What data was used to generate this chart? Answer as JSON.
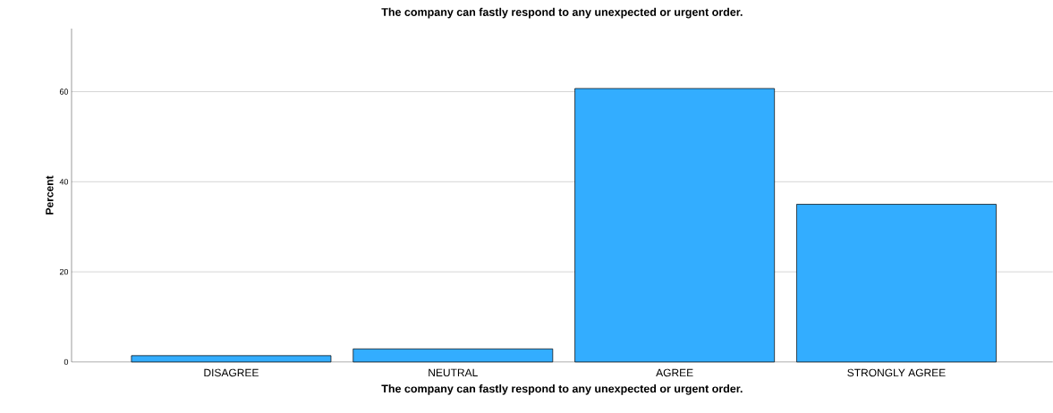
{
  "chart_data": {
    "type": "bar",
    "title": "The company can fastly respond to any unexpected or urgent order.",
    "xlabel": "The company can fastly respond to any unexpected or urgent order.",
    "ylabel": "Percent",
    "categories": [
      "DISAGREE",
      "NEUTRAL",
      "AGREE",
      "STRONGLY AGREE"
    ],
    "values": [
      1.4,
      2.9,
      60.7,
      35.0
    ],
    "color": "#33adff",
    "ylim": [
      0,
      74
    ],
    "yticks": [
      0,
      20,
      40,
      60
    ],
    "grid": "y"
  }
}
